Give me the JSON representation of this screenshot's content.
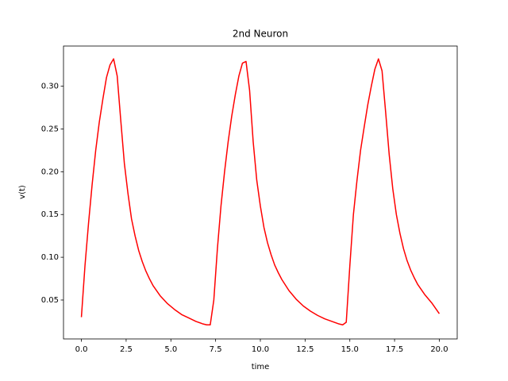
{
  "chart_data": {
    "type": "line",
    "title": "2nd Neuron",
    "x_label": "time",
    "y_label": "v(t)",
    "series": [
      {
        "color": "#ff0000",
        "x": [
          0,
          0.2,
          0.4,
          0.6,
          0.8,
          1.0,
          1.2,
          1.4,
          1.6,
          1.8,
          2.0,
          2.2,
          2.4,
          2.6,
          2.8,
          3.0,
          3.2,
          3.4,
          3.6,
          3.8,
          4.0,
          4.4,
          4.8,
          5.2,
          5.6,
          6.0,
          6.4,
          6.8,
          7.0,
          7.2,
          7.4,
          7.6,
          7.8,
          8.0,
          8.2,
          8.4,
          8.6,
          8.8,
          9.0,
          9.2,
          9.4,
          9.6,
          9.8,
          10.0,
          10.2,
          10.4,
          10.6,
          10.8,
          11.0,
          11.2,
          11.6,
          12.0,
          12.4,
          12.8,
          13.2,
          13.6,
          14.0,
          14.4,
          14.6,
          14.8,
          15.0,
          15.2,
          15.4,
          15.6,
          15.8,
          16.0,
          16.2,
          16.4,
          16.6,
          16.8,
          17.0,
          17.2,
          17.4,
          17.6,
          17.8,
          18.0,
          18.2,
          18.4,
          18.6,
          18.8,
          19.2,
          19.6,
          20.0
        ],
        "values": [
          0.03,
          0.09,
          0.14,
          0.185,
          0.225,
          0.258,
          0.285,
          0.31,
          0.325,
          0.332,
          0.312,
          0.26,
          0.21,
          0.175,
          0.145,
          0.125,
          0.108,
          0.095,
          0.084,
          0.075,
          0.067,
          0.055,
          0.046,
          0.039,
          0.033,
          0.029,
          0.025,
          0.022,
          0.021,
          0.021,
          0.05,
          0.11,
          0.16,
          0.2,
          0.235,
          0.265,
          0.29,
          0.312,
          0.327,
          0.329,
          0.295,
          0.235,
          0.19,
          0.16,
          0.135,
          0.117,
          0.103,
          0.091,
          0.082,
          0.074,
          0.061,
          0.051,
          0.043,
          0.037,
          0.032,
          0.028,
          0.025,
          0.022,
          0.021,
          0.024,
          0.09,
          0.15,
          0.19,
          0.225,
          0.252,
          0.278,
          0.3,
          0.32,
          0.332,
          0.318,
          0.27,
          0.22,
          0.18,
          0.15,
          0.128,
          0.11,
          0.096,
          0.085,
          0.076,
          0.068,
          0.056,
          0.046,
          0.034
        ]
      }
    ],
    "xlim": [
      -1.0,
      21.0
    ],
    "ylim": [
      0.0045,
      0.347
    ],
    "xticks": [
      {
        "value": 0,
        "label": "0.0"
      },
      2.5,
      {
        "value": 5,
        "label": "5.0"
      },
      7.5,
      {
        "value": 10,
        "label": "10.0"
      },
      12.5,
      {
        "value": 15,
        "label": "15.0"
      },
      17.5,
      {
        "value": 20,
        "label": "20.0"
      }
    ],
    "yticks": [
      0.05,
      {
        "value": 0.1,
        "label": "0.10"
      },
      0.15,
      {
        "value": 0.2,
        "label": "0.20"
      },
      0.25,
      {
        "value": 0.3,
        "label": "0.30"
      }
    ]
  }
}
